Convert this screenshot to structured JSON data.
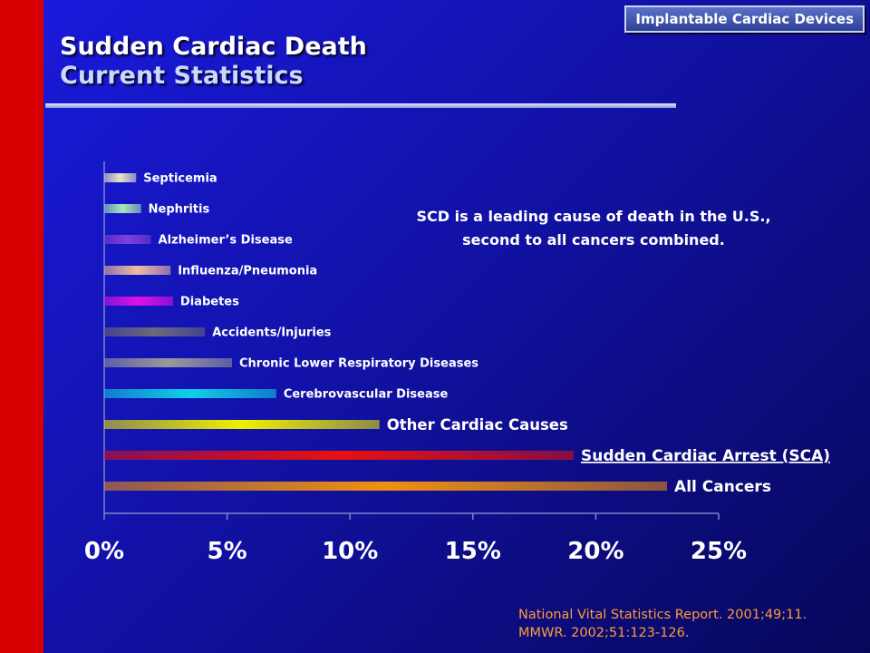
{
  "header_tag": "Implantable Cardiac Devices",
  "title_line1": "Sudden Cardiac Death",
  "title_line2": "Current Statistics",
  "callout": "SCD is a leading cause of death in the U.S., second to all cancers combined.",
  "source_lines": [
    "National Vital Statistics Report. 2001;49;11.",
    "MMWR. 2002;51:123-126."
  ],
  "chart_data": {
    "type": "bar",
    "orientation": "horizontal",
    "xlim": [
      0,
      25
    ],
    "x_ticks": [
      "0%",
      "5%",
      "10%",
      "15%",
      "20%",
      "25%"
    ],
    "categories": [
      "Septicemia",
      "Nephritis",
      "Alzheimer’s Disease",
      "Influenza/Pneumonia",
      "Diabetes",
      "Accidents/Injuries",
      "Chronic Lower Respiratory Diseases",
      "Cerebrovascular Disease",
      "Other Cardiac Causes",
      "Sudden Cardiac Arrest (SCA)",
      "All Cancers"
    ],
    "values": [
      1.3,
      1.5,
      1.9,
      2.7,
      2.8,
      4.1,
      5.2,
      7.0,
      11.2,
      19.1,
      22.9
    ],
    "colors": [
      "#e8e6c4",
      "#a8e8b8",
      "#8040d8",
      "#f0bca0",
      "#e010e8",
      "#6a6a7a",
      "#9a9a9a",
      "#10d0e8",
      "#f0f000",
      "#e81010",
      "#f09010"
    ],
    "label_emphasis": [
      "small",
      "small",
      "small",
      "small",
      "small",
      "small",
      "small",
      "small",
      "medium",
      "large",
      "large"
    ],
    "underlined": [
      "Sudden Cardiac Arrest (SCA)"
    ]
  }
}
